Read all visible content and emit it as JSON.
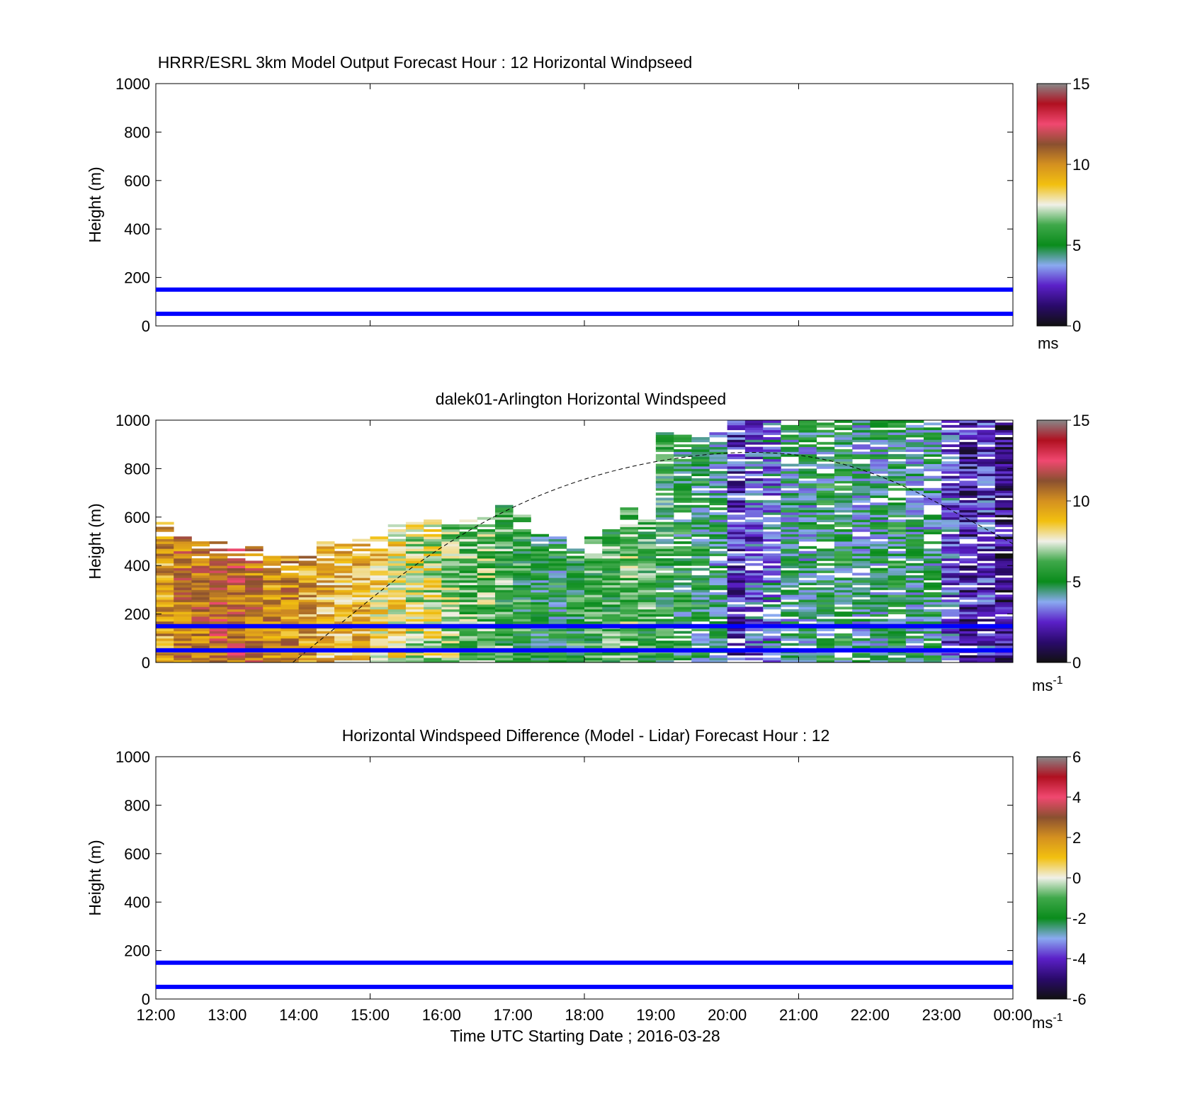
{
  "figure": {
    "x_tick_labels": [
      "12:00",
      "13:00",
      "14:00",
      "15:00",
      "16:00",
      "17:00",
      "18:00",
      "19:00",
      "20:00",
      "21:00",
      "22:00",
      "23:00",
      "00:00"
    ],
    "xlabel": "Time UTC  Starting Date ; 2016-03-28",
    "y_tick_labels": [
      "0",
      "200",
      "400",
      "600",
      "800",
      "1000"
    ],
    "ylabel": "Height (m)",
    "reference_line_color": "#0000ff",
    "reference_line_heights_m": [
      50,
      150
    ],
    "boundary_layer_curve_color": "#000000"
  },
  "panels": {
    "model": {
      "title": "HRRR/ESRL 3km Model Output   Forecast Hour : 12 Horizontal Windpseed",
      "colorbar_ticks": [
        "0",
        "5",
        "10",
        "15"
      ],
      "colorbar_unit": "ms",
      "colorbar_unit_sup": ""
    },
    "lidar": {
      "title": "dalek01-Arlington  Horizontal Windspeed",
      "colorbar_ticks": [
        "0",
        "5",
        "10",
        "15"
      ],
      "colorbar_unit": "ms",
      "colorbar_unit_sup": "-1"
    },
    "difference": {
      "title": "Horizontal Windspeed Difference (Model - Lidar) Forecast Hour : 12",
      "colorbar_ticks": [
        "-6",
        "-4",
        "-2",
        "0",
        "2",
        "4",
        "6"
      ],
      "colorbar_unit": "ms",
      "colorbar_unit_sup": "-1"
    }
  },
  "colormap_stops": [
    "#111111",
    "#2a0a6b",
    "#5b20c8",
    "#8aaaf0",
    "#0a8c1c",
    "#3fa84a",
    "#f0f0e8",
    "#f2c010",
    "#d49020",
    "#8a5030",
    "#f04870",
    "#b01020",
    "#888888"
  ],
  "chart_data": [
    {
      "type": "heatmap",
      "title": "HRRR/ESRL 3km Model Output   Forecast Hour : 12 Horizontal Windpseed",
      "xlabel": "",
      "ylabel": "Height (m)",
      "x_range": [
        "12:00",
        "00:00"
      ],
      "ylim": [
        0,
        1000
      ],
      "colorbar": {
        "range": [
          0,
          15
        ],
        "unit": "ms"
      },
      "values": [],
      "reference_lines_m": [
        50,
        150
      ]
    },
    {
      "type": "heatmap",
      "title": "dalek01-Arlington  Horizontal Windspeed",
      "xlabel": "",
      "ylabel": "Height (m)",
      "x_range": [
        "12:00",
        "00:00"
      ],
      "ylim": [
        0,
        1000
      ],
      "colorbar": {
        "range": [
          0,
          15
        ],
        "unit": "ms-1"
      },
      "time_hours": [
        12.0,
        12.25,
        12.5,
        12.75,
        13.0,
        13.25,
        13.5,
        13.75,
        14.0,
        14.25,
        14.5,
        14.75,
        15.0,
        15.25,
        15.5,
        15.75,
        16.0,
        16.25,
        16.5,
        16.75,
        17.0,
        17.25,
        17.5,
        17.75,
        18.0,
        18.25,
        18.5,
        18.75,
        19.0,
        19.25,
        19.5,
        19.75,
        20.0,
        20.25,
        20.5,
        20.75,
        21.0,
        21.25,
        21.5,
        21.75,
        22.0,
        22.25,
        22.5,
        22.75,
        23.0,
        23.25,
        23.5,
        23.75
      ],
      "data_top_m": [
        580,
        530,
        500,
        500,
        500,
        480,
        440,
        440,
        440,
        500,
        500,
        520,
        520,
        580,
        590,
        600,
        580,
        590,
        600,
        650,
        610,
        540,
        520,
        500,
        520,
        560,
        640,
        600,
        960,
        940,
        930,
        960,
        1000,
        1000,
        1000,
        1000,
        1000,
        1000,
        1000,
        1000,
        1000,
        1000,
        1000,
        1000,
        1000,
        1000,
        1000,
        1000
      ],
      "typical_speed_ms": [
        9.5,
        10.5,
        10.5,
        11,
        11,
        10.5,
        10,
        10,
        9.5,
        9,
        9,
        9,
        8.5,
        8,
        7.5,
        7.5,
        7,
        6.5,
        6.5,
        6,
        5.5,
        5,
        5,
        5.5,
        6,
        6,
        6.5,
        6,
        5.5,
        5,
        5,
        4.5,
        2.5,
        3,
        3.5,
        4.5,
        4.5,
        5,
        5,
        4.5,
        4.5,
        5,
        4.5,
        4.5,
        3,
        2,
        2.5,
        1.5
      ],
      "boundary_layer_height_m": [
        {
          "x": "13:55",
          "y": 0
        },
        {
          "x": "16:00",
          "y": 500
        },
        {
          "x": "18:00",
          "y": 780
        },
        {
          "x": "20:15",
          "y": 890
        },
        {
          "x": "22:00",
          "y": 810
        },
        {
          "x": "00:00",
          "y": 490
        }
      ],
      "reference_lines_m": [
        50,
        150
      ]
    },
    {
      "type": "heatmap",
      "title": "Horizontal Windspeed Difference (Model - Lidar) Forecast Hour : 12",
      "xlabel": "Time UTC  Starting Date ; 2016-03-28",
      "ylabel": "Height (m)",
      "x_range": [
        "12:00",
        "00:00"
      ],
      "ylim": [
        0,
        1000
      ],
      "colorbar": {
        "range": [
          -6,
          6
        ],
        "unit": "ms-1"
      },
      "values": [],
      "reference_lines_m": [
        50,
        150
      ]
    }
  ]
}
